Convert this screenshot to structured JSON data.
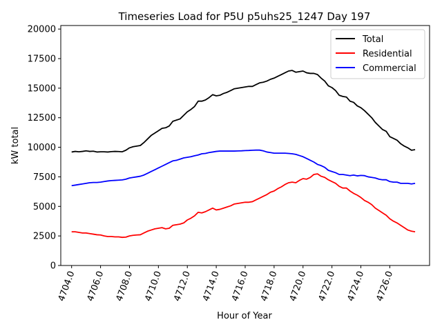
{
  "chart_data": {
    "type": "line",
    "title": "Timeseries Load for P5U p5uhs25_1247  Day 197",
    "xlabel": "Hour of Year",
    "ylabel": "kW total",
    "xlim": [
      4703.25,
      4728.75
    ],
    "ylim": [
      0,
      20300
    ],
    "xticks": [
      4704,
      4706,
      4708,
      4710,
      4712,
      4714,
      4716,
      4718,
      4720,
      4722,
      4724,
      4726
    ],
    "xtick_labels": [
      "4704.0",
      "4706.0",
      "4708.0",
      "4710.0",
      "4712.0",
      "4714.0",
      "4716.0",
      "4718.0",
      "4720.0",
      "4722.0",
      "4724.0",
      "4726.0"
    ],
    "yticks": [
      0,
      2500,
      5000,
      7500,
      10000,
      12500,
      15000,
      17500,
      20000
    ],
    "ytick_labels": [
      "0",
      "2500",
      "5000",
      "7500",
      "10000",
      "12500",
      "15000",
      "17500",
      "20000"
    ],
    "legend_position": "top-right",
    "x": [
      4704,
      4704.25,
      4704.5,
      4704.75,
      4705,
      4705.25,
      4705.5,
      4705.75,
      4706,
      4706.25,
      4706.5,
      4706.75,
      4707,
      4707.25,
      4707.5,
      4707.75,
      4708,
      4708.25,
      4708.5,
      4708.75,
      4709,
      4709.25,
      4709.5,
      4709.75,
      4710,
      4710.25,
      4710.5,
      4710.75,
      4711,
      4711.25,
      4711.5,
      4711.75,
      4712,
      4712.25,
      4712.5,
      4712.75,
      4713,
      4713.25,
      4713.5,
      4713.75,
      4714,
      4714.25,
      4714.5,
      4714.75,
      4715,
      4715.25,
      4715.5,
      4715.75,
      4716,
      4716.25,
      4716.5,
      4716.75,
      4717,
      4717.25,
      4717.5,
      4717.75,
      4718,
      4718.25,
      4718.5,
      4718.75,
      4719,
      4719.25,
      4719.5,
      4719.75,
      4720,
      4720.25,
      4720.5,
      4720.75,
      4721,
      4721.25,
      4721.5,
      4721.75,
      4722,
      4722.25,
      4722.5,
      4722.75,
      4723,
      4723.25,
      4723.5,
      4723.75,
      4724,
      4724.25,
      4724.5,
      4724.75,
      4725,
      4725.25,
      4725.5,
      4725.75,
      4726,
      4726.25,
      4726.5,
      4726.75,
      4727,
      4727.25,
      4727.5,
      4727.75
    ],
    "series": [
      {
        "name": "Total",
        "color": "#000000",
        "values": [
          9600,
          9650,
          9620,
          9650,
          9700,
          9650,
          9670,
          9600,
          9620,
          9620,
          9600,
          9630,
          9650,
          9640,
          9620,
          9750,
          9950,
          10050,
          10100,
          10150,
          10400,
          10700,
          11000,
          11200,
          11400,
          11600,
          11650,
          11800,
          12200,
          12300,
          12400,
          12700,
          13000,
          13200,
          13450,
          13900,
          13900,
          14000,
          14200,
          14450,
          14350,
          14400,
          14550,
          14650,
          14800,
          14950,
          15000,
          15050,
          15100,
          15150,
          15150,
          15300,
          15450,
          15500,
          15600,
          15750,
          15850,
          16000,
          16150,
          16300,
          16450,
          16500,
          16350,
          16400,
          16450,
          16300,
          16250,
          16250,
          16150,
          15850,
          15600,
          15200,
          15050,
          14800,
          14400,
          14300,
          14250,
          13900,
          13800,
          13500,
          13350,
          13100,
          12800,
          12500,
          12100,
          11800,
          11500,
          11350,
          10900,
          10750,
          10600,
          10300,
          10100,
          9950,
          9750,
          9800
        ]
      },
      {
        "name": "Residential",
        "color": "#ff0000",
        "values": [
          2850,
          2850,
          2800,
          2750,
          2750,
          2700,
          2650,
          2600,
          2580,
          2500,
          2450,
          2450,
          2420,
          2420,
          2380,
          2400,
          2500,
          2550,
          2580,
          2600,
          2750,
          2900,
          3000,
          3100,
          3150,
          3200,
          3100,
          3150,
          3400,
          3450,
          3500,
          3600,
          3850,
          4000,
          4200,
          4500,
          4450,
          4550,
          4700,
          4850,
          4700,
          4750,
          4850,
          4950,
          5050,
          5200,
          5250,
          5300,
          5350,
          5350,
          5400,
          5550,
          5700,
          5850,
          6000,
          6200,
          6300,
          6500,
          6650,
          6850,
          7000,
          7050,
          7000,
          7200,
          7350,
          7300,
          7450,
          7700,
          7750,
          7550,
          7450,
          7250,
          7100,
          6950,
          6700,
          6550,
          6550,
          6300,
          6100,
          5950,
          5750,
          5500,
          5350,
          5150,
          4850,
          4650,
          4450,
          4250,
          3950,
          3750,
          3600,
          3400,
          3200,
          3000,
          2900,
          2850
        ]
      },
      {
        "name": "Commercial",
        "color": "#0000ff",
        "values": [
          6750,
          6800,
          6850,
          6900,
          6950,
          7000,
          7020,
          7020,
          7050,
          7100,
          7150,
          7180,
          7200,
          7220,
          7240,
          7300,
          7400,
          7450,
          7500,
          7550,
          7650,
          7800,
          7950,
          8100,
          8250,
          8400,
          8550,
          8700,
          8850,
          8900,
          9000,
          9100,
          9150,
          9200,
          9280,
          9350,
          9450,
          9480,
          9550,
          9600,
          9650,
          9680,
          9680,
          9680,
          9680,
          9680,
          9690,
          9700,
          9720,
          9730,
          9750,
          9760,
          9760,
          9700,
          9600,
          9550,
          9500,
          9500,
          9500,
          9500,
          9480,
          9450,
          9400,
          9300,
          9200,
          9050,
          8900,
          8750,
          8550,
          8450,
          8300,
          8050,
          7950,
          7850,
          7700,
          7700,
          7650,
          7600,
          7650,
          7580,
          7620,
          7600,
          7500,
          7450,
          7400,
          7300,
          7250,
          7250,
          7100,
          7050,
          7050,
          6950,
          6950,
          6950,
          6900,
          6950
        ]
      }
    ]
  }
}
